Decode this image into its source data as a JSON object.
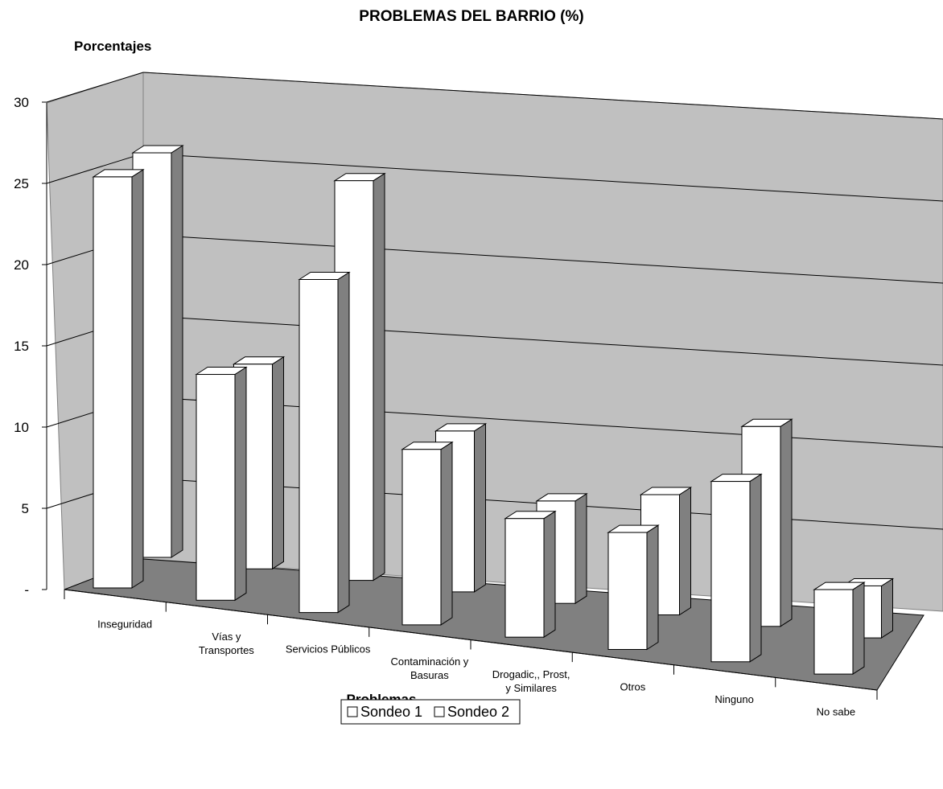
{
  "chart_data": {
    "type": "bar",
    "title": "PROBLEMAS DEL BARRIO (%)",
    "ylabel": "Porcentajes",
    "xlabel": "Problemas",
    "ylim": [
      0,
      30
    ],
    "yticks": [
      "-",
      "5",
      "10",
      "15",
      "20",
      "25",
      "30"
    ],
    "ytick_values": [
      0,
      5,
      10,
      15,
      20,
      25,
      30
    ],
    "categories": [
      [
        "Inseguridad"
      ],
      [
        "Vías y",
        "Transportes"
      ],
      [
        "Servicios Públicos"
      ],
      [
        "Contaminación y",
        "Basuras"
      ],
      [
        "Drogadic,, Prost,",
        "y Similares"
      ],
      [
        "Otros"
      ],
      [
        "Ninguno"
      ],
      [
        "No sabe"
      ]
    ],
    "series": [
      {
        "name": "Sondeo 1",
        "values": [
          25.3,
          13.9,
          20.5,
          10.8,
          7.3,
          7.2,
          11.1,
          5.2
        ]
      },
      {
        "name": "Sondeo 2",
        "values": [
          24.9,
          12.6,
          24.6,
          9.9,
          6.3,
          7.4,
          12.3,
          3.2
        ]
      }
    ],
    "grid": true,
    "legend_position": "bottom",
    "colors": {
      "bar_face": "#ffffff",
      "bar_side": "#808080",
      "bar_top": "#ffffff",
      "wall": "#c0c0c0",
      "floor": "#808080",
      "edge": "#000000"
    }
  }
}
